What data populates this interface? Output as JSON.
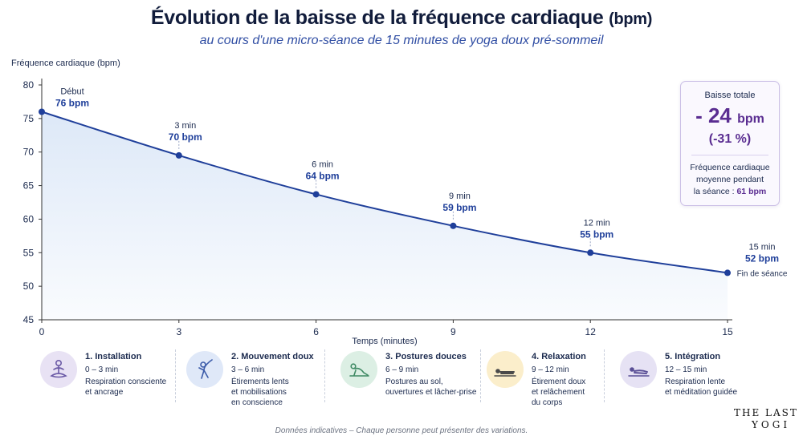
{
  "header": {
    "title": "Évolution de la baisse de la fréquence cardiaque",
    "title_unit": "(bpm)",
    "subtitle": "au cours d'une micro-séance de 15 minutes de yoga doux pré-sommeil"
  },
  "chart_data": {
    "type": "area",
    "ylabel": "Fréquence cardiaque (bpm)",
    "xlabel": "Temps (minutes)",
    "ylim": [
      45,
      80
    ],
    "xlim": [
      0,
      15
    ],
    "yticks": [
      45,
      50,
      55,
      60,
      65,
      70,
      75,
      80
    ],
    "xticks": [
      0,
      3,
      6,
      9,
      12,
      15
    ],
    "grid": false,
    "points": [
      {
        "x": 0,
        "y": 76,
        "label_top": "Début",
        "label_value": "76 bpm",
        "label_extra": ""
      },
      {
        "x": 3,
        "y": 69.5,
        "label_top": "3 min",
        "label_value": "70 bpm",
        "label_extra": ""
      },
      {
        "x": 6,
        "y": 63.7,
        "label_top": "6 min",
        "label_value": "64 bpm",
        "label_extra": ""
      },
      {
        "x": 9,
        "y": 59,
        "label_top": "9 min",
        "label_value": "59 bpm",
        "label_extra": ""
      },
      {
        "x": 12,
        "y": 55,
        "label_top": "12 min",
        "label_value": "55 bpm",
        "label_extra": ""
      },
      {
        "x": 15,
        "y": 52,
        "label_top": "15 min",
        "label_value": "52 bpm",
        "label_extra": "Fin de séance"
      }
    ],
    "line_color": "#1f3f9a",
    "fill_color": "#dbe7f7"
  },
  "summary": {
    "title": "Baisse totale",
    "value": "- 24",
    "unit": "bpm",
    "percent": "(-31 %)",
    "desc_line1": "Fréquence cardiaque",
    "desc_line2": "moyenne pendant",
    "desc_line3": "la séance :",
    "avg": "61 bpm"
  },
  "phases": [
    {
      "title": "1. Installation",
      "time": "0 – 3 min",
      "line1": "Respiration consciente",
      "line2": "et ancrage",
      "line3": "",
      "icon": "meditation-icon",
      "color": "#e8e2f4",
      "figure": "#6b5aa6"
    },
    {
      "title": "2. Mouvement doux",
      "time": "3 – 6 min",
      "line1": "Étirements lents",
      "line2": "et mobilisations",
      "line3": "en conscience",
      "icon": "stretch-icon",
      "color": "#dfe8f8",
      "figure": "#3b5ba9"
    },
    {
      "title": "3. Postures douces",
      "time": "6 – 9 min",
      "line1": "Postures au sol,",
      "line2": "ouvertures et lâcher-prise",
      "line3": "",
      "icon": "floor-pose-icon",
      "color": "#dcefe4",
      "figure": "#3f8a64"
    },
    {
      "title": "4. Relaxation",
      "time": "9 – 12 min",
      "line1": "Étirement doux",
      "line2": "et relâchement",
      "line3": "du corps",
      "icon": "lying-pose-icon",
      "color": "#fbeecb",
      "figure": "#4a4a4a"
    },
    {
      "title": "5. Intégration",
      "time": "12 – 15 min",
      "line1": "Respiration lente",
      "line2": "et méditation guidée",
      "line3": "",
      "icon": "rest-pose-icon",
      "color": "#e6e2f4",
      "figure": "#5a4f96"
    }
  ],
  "footnote": "Données indicatives – Chaque personne peut présenter des variations.",
  "logo": {
    "line1": "THE LAST",
    "line2": "YOGI"
  }
}
